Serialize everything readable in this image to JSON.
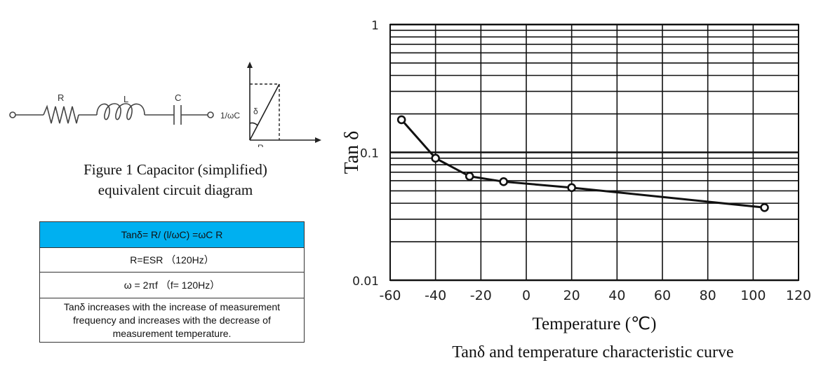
{
  "figure1": {
    "labels": {
      "r": "R",
      "l": "L",
      "c": "C",
      "reactance": "1/ωC",
      "delta": "δ",
      "r_axis": "R"
    },
    "caption_line1": "Figure 1 Capacitor (simplified)",
    "caption_line2": "equivalent circuit diagram"
  },
  "table": {
    "row1": "Tanδ= R/  (l/ωC)  =ωC R",
    "row2": "R=ESR  （120Hz）",
    "row3": "ω = 2πf  （f= 120Hz）",
    "row4": "Tanδ increases with the increase of measurement frequency and increases with the decrease of measurement temperature.",
    "header_color": "#00b0f0"
  },
  "chart_data": {
    "type": "line",
    "title": "Tanδ and temperature characteristic curve",
    "xlabel": "Temperature (℃)",
    "ylabel": "Tan δ",
    "x_scale": "linear",
    "y_scale": "log",
    "xlim": [
      -60,
      120
    ],
    "ylim": [
      0.01,
      1
    ],
    "x_ticks": [
      -60,
      -40,
      -20,
      0,
      20,
      40,
      60,
      80,
      100,
      120
    ],
    "x_tick_labels": [
      "-60",
      "-40",
      "-20",
      "0",
      "20",
      "40",
      "60",
      "80",
      "100",
      "120"
    ],
    "y_ticks": [
      0.01,
      0.1,
      1
    ],
    "y_tick_labels": [
      "0.01",
      "0.1",
      "1"
    ],
    "grid": true,
    "series": [
      {
        "name": "Tan δ",
        "x": [
          -55,
          -40,
          -25,
          -10,
          20,
          105
        ],
        "y": [
          0.18,
          0.09,
          0.065,
          0.059,
          0.053,
          0.037
        ],
        "marker": "circle-open"
      }
    ]
  }
}
